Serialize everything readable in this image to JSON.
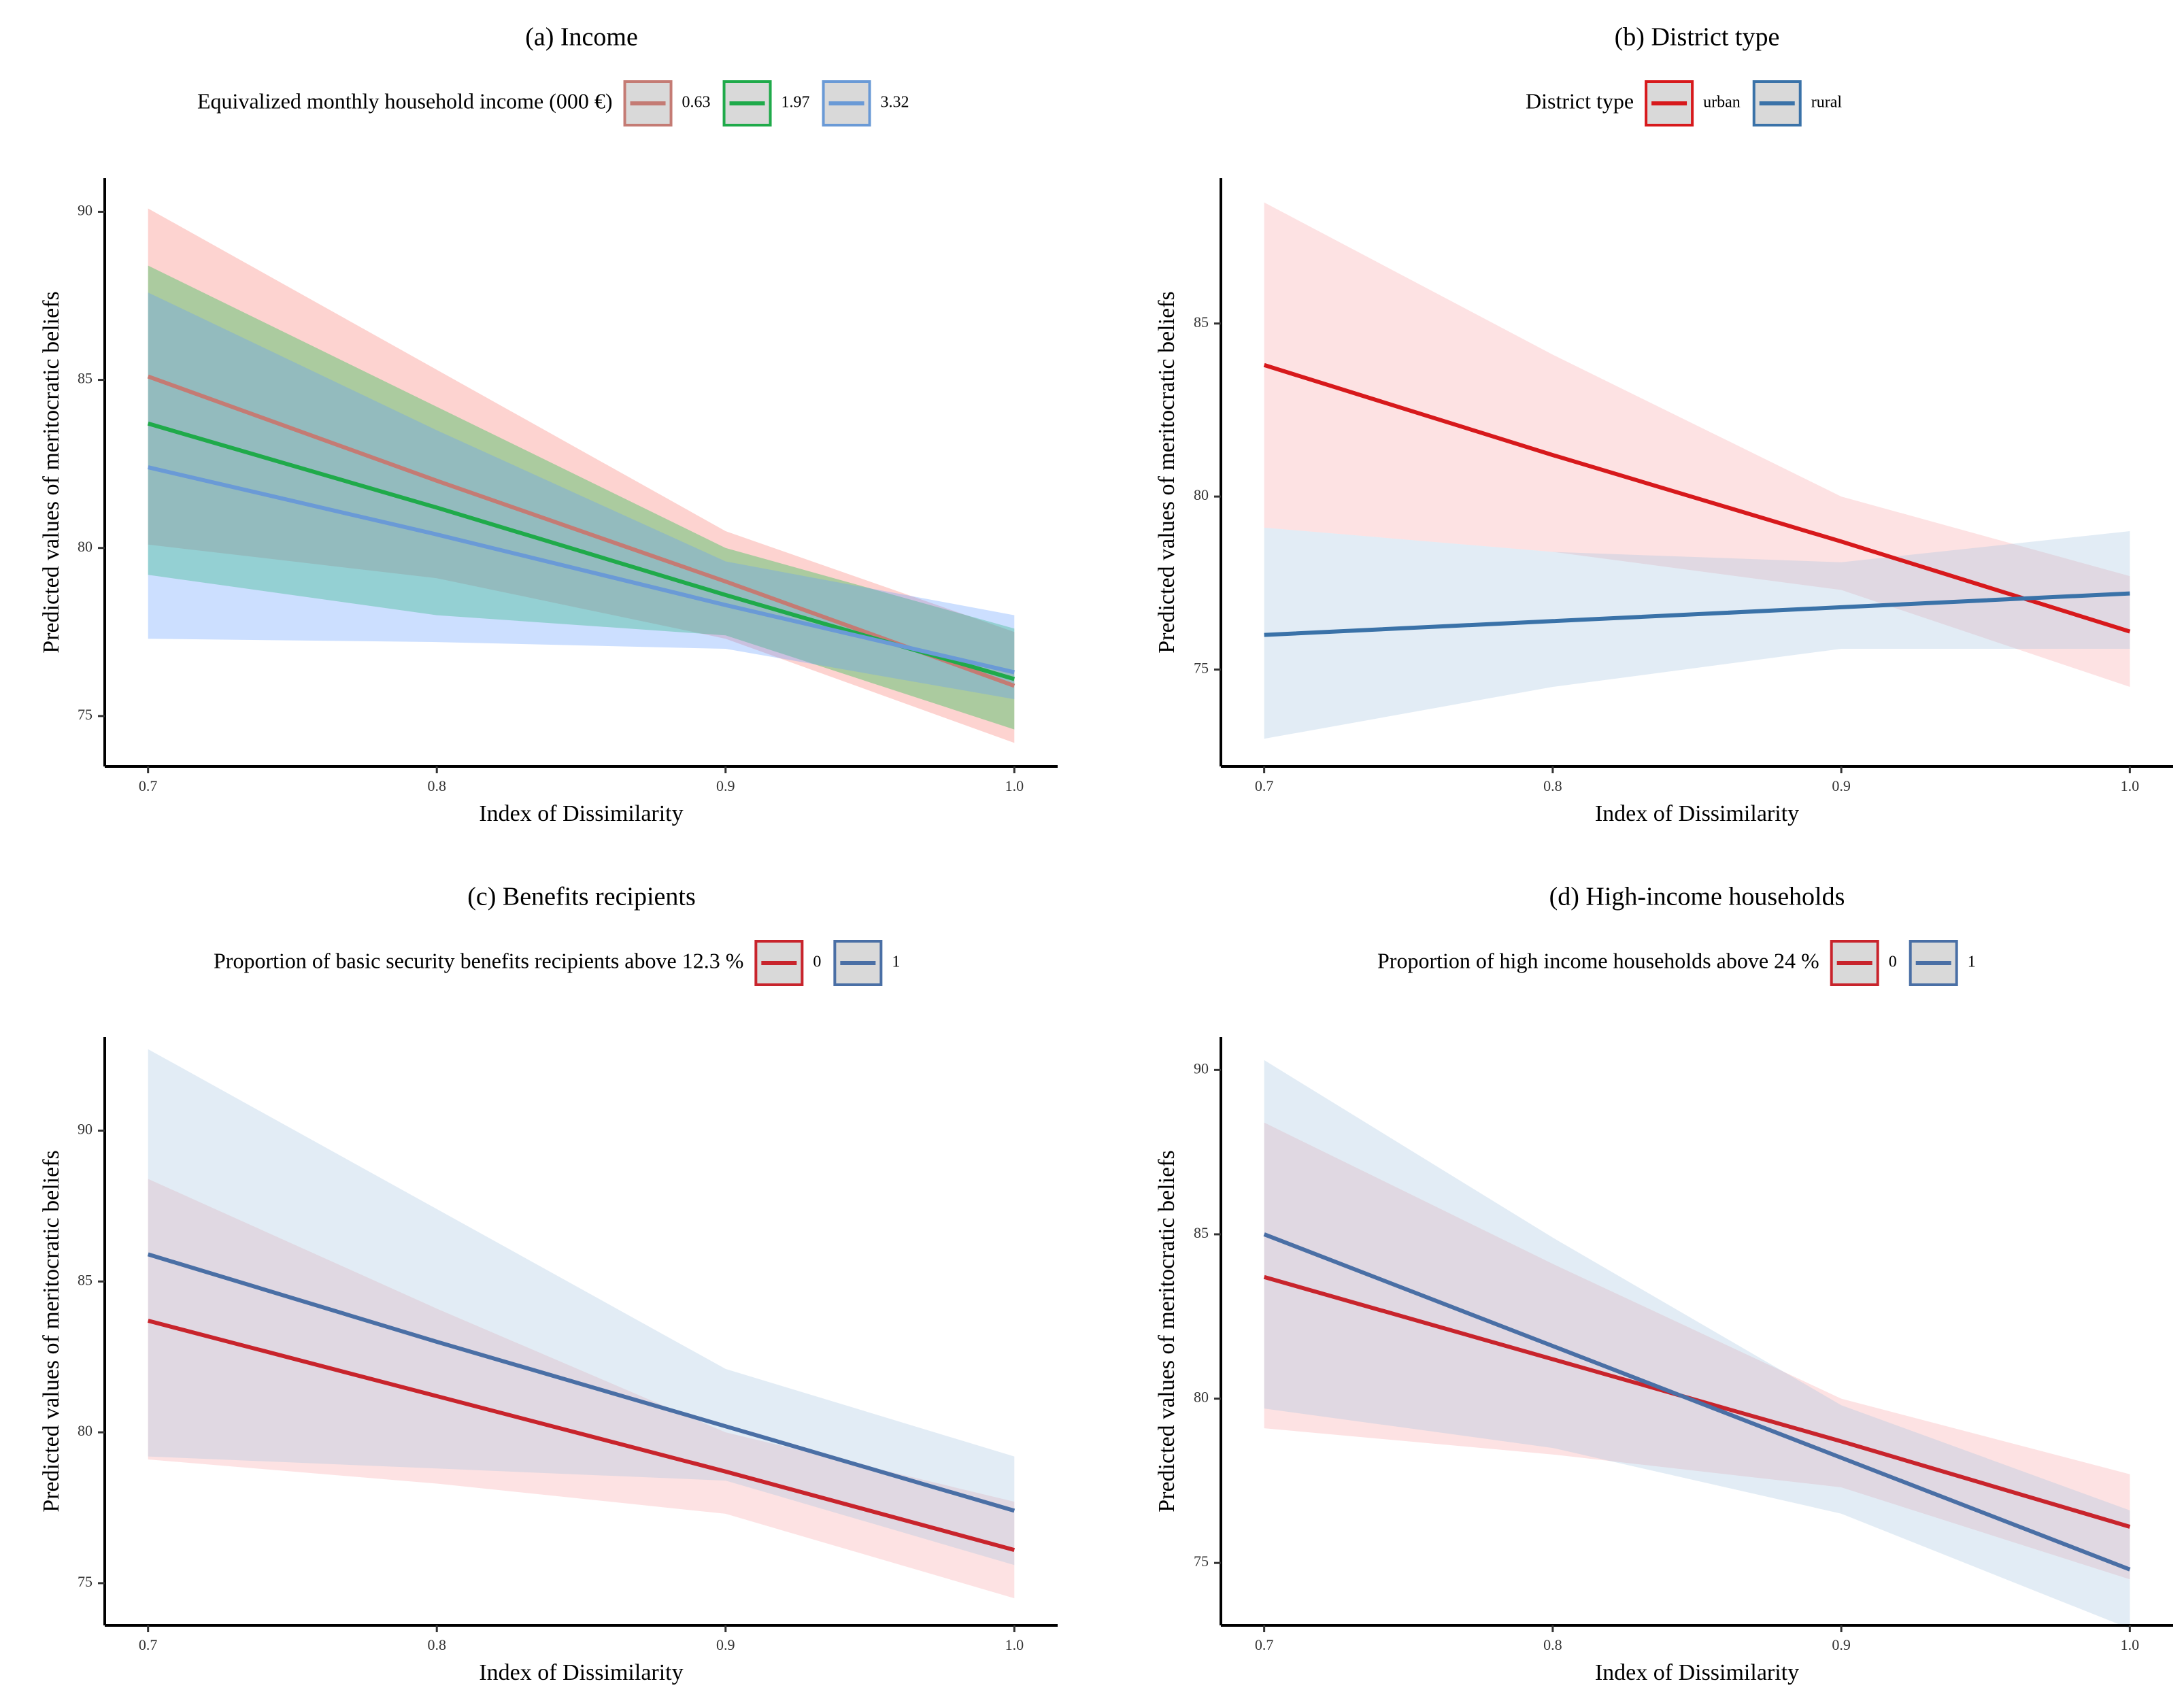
{
  "chart_data": [
    {
      "type": "line",
      "panel": "a",
      "title": "(a) Income",
      "xlabel": "Index of Dissimilarity",
      "ylabel": "Predicted values of meritocratic beliefs",
      "xlim": [
        0.685,
        1.015
      ],
      "ylim": [
        73.5,
        91.0
      ],
      "xticks": [
        0.7,
        0.8,
        0.9,
        1.0
      ],
      "xtick_labels": [
        "0.7",
        "0.8",
        "0.9",
        "1.0"
      ],
      "yticks": [
        75,
        80,
        85,
        90
      ],
      "ytick_labels": [
        "75",
        "80",
        "85",
        "90"
      ],
      "legend_title": "Equivalized monthly household income (000 €)",
      "legend_position": "top",
      "grid": false,
      "x": [
        0.7,
        0.8,
        0.9,
        1.0
      ],
      "series": [
        {
          "name": "0.63",
          "color": "#c47b74",
          "fill": "#f8766d",
          "values": [
            85.1,
            82.0,
            79.0,
            75.9
          ],
          "lower": [
            80.1,
            79.1,
            77.3,
            74.2
          ],
          "upper": [
            90.1,
            85.3,
            80.5,
            77.5
          ]
        },
        {
          "name": "1.97",
          "color": "#1faa4a",
          "fill": "#00ba38",
          "values": [
            83.7,
            81.2,
            78.6,
            76.1
          ],
          "lower": [
            79.2,
            78.0,
            77.4,
            74.6
          ],
          "upper": [
            88.4,
            84.2,
            80.0,
            77.6
          ]
        },
        {
          "name": "3.32",
          "color": "#6a9ad6",
          "fill": "#619cff",
          "values": [
            82.4,
            80.4,
            78.3,
            76.3
          ],
          "lower": [
            77.3,
            77.2,
            77.0,
            75.5
          ],
          "upper": [
            87.6,
            83.5,
            79.6,
            78.0
          ]
        }
      ]
    },
    {
      "type": "line",
      "panel": "b",
      "title": "(b) District type",
      "xlabel": "Index of Dissimilarity",
      "ylabel": "Predicted values of meritocratic beliefs",
      "xlim": [
        0.685,
        1.015
      ],
      "ylim": [
        72.2,
        89.2
      ],
      "xticks": [
        0.7,
        0.8,
        0.9,
        1.0
      ],
      "xtick_labels": [
        "0.7",
        "0.8",
        "0.9",
        "1.0"
      ],
      "yticks": [
        75,
        80,
        85
      ],
      "ytick_labels": [
        "75",
        "80",
        "85"
      ],
      "legend_title": "District type",
      "legend_position": "top",
      "grid": false,
      "x": [
        0.7,
        0.8,
        0.9,
        1.0
      ],
      "series": [
        {
          "name": "urban",
          "color": "#d7191c",
          "fill": "#f8a5a9",
          "values": [
            83.8,
            81.2,
            78.7,
            76.1
          ],
          "lower": [
            79.1,
            78.4,
            77.3,
            74.5
          ],
          "upper": [
            88.5,
            84.1,
            80.0,
            77.7
          ]
        },
        {
          "name": "rural",
          "color": "#3a72a8",
          "fill": "#a6c4e0",
          "values": [
            76.0,
            76.4,
            76.8,
            77.2
          ],
          "lower": [
            73.0,
            74.5,
            75.6,
            75.6
          ],
          "upper": [
            79.1,
            78.4,
            78.1,
            79.0
          ]
        }
      ]
    },
    {
      "type": "line",
      "panel": "c",
      "title": "(c) Benefits recipients",
      "xlabel": "Index of Dissimilarity",
      "ylabel": "Predicted values of meritocratic beliefs",
      "xlim": [
        0.685,
        1.015
      ],
      "ylim": [
        73.6,
        93.1
      ],
      "xticks": [
        0.7,
        0.8,
        0.9,
        1.0
      ],
      "xtick_labels": [
        "0.7",
        "0.8",
        "0.9",
        "1.0"
      ],
      "yticks": [
        75,
        80,
        85,
        90
      ],
      "ytick_labels": [
        "75",
        "80",
        "85",
        "90"
      ],
      "legend_title": "Proportion of basic security benefits recipients above 12.3 %",
      "legend_position": "top",
      "grid": false,
      "x": [
        0.7,
        0.8,
        0.9,
        1.0
      ],
      "series": [
        {
          "name": "0",
          "color": "#c8242c",
          "fill": "#f8a5a9",
          "values": [
            83.7,
            81.2,
            78.7,
            76.1
          ],
          "lower": [
            79.1,
            78.3,
            77.3,
            74.5
          ],
          "upper": [
            88.4,
            84.1,
            80.0,
            77.7
          ]
        },
        {
          "name": "1",
          "color": "#4a6fa5",
          "fill": "#a6c4e0",
          "values": [
            85.9,
            83.0,
            80.2,
            77.4
          ],
          "lower": [
            79.2,
            78.8,
            78.4,
            75.6
          ],
          "upper": [
            92.7,
            87.4,
            82.1,
            79.2
          ]
        }
      ]
    },
    {
      "type": "line",
      "panel": "d",
      "title": "(d) High-income households",
      "xlabel": "Index of Dissimilarity",
      "ylabel": "Predicted values of meritocratic beliefs",
      "xlim": [
        0.685,
        1.015
      ],
      "ylim": [
        73.1,
        91.0
      ],
      "xticks": [
        0.7,
        0.8,
        0.9,
        1.0
      ],
      "xtick_labels": [
        "0.7",
        "0.8",
        "0.9",
        "1.0"
      ],
      "yticks": [
        75,
        80,
        85,
        90
      ],
      "ytick_labels": [
        "75",
        "80",
        "85",
        "90"
      ],
      "legend_title": "Proportion of high income households above 24 %",
      "legend_position": "top",
      "grid": false,
      "x": [
        0.7,
        0.8,
        0.9,
        1.0
      ],
      "series": [
        {
          "name": "0",
          "color": "#c8242c",
          "fill": "#f8a5a9",
          "values": [
            83.7,
            81.2,
            78.7,
            76.1
          ],
          "lower": [
            79.1,
            78.3,
            77.3,
            74.5
          ],
          "upper": [
            88.4,
            84.1,
            80.0,
            77.7
          ]
        },
        {
          "name": "1",
          "color": "#4a6fa5",
          "fill": "#a6c4e0",
          "values": [
            85.0,
            81.6,
            78.2,
            74.8
          ],
          "lower": [
            79.7,
            78.5,
            76.5,
            73.0
          ],
          "upper": [
            90.3,
            84.9,
            79.8,
            76.6
          ]
        }
      ]
    }
  ]
}
